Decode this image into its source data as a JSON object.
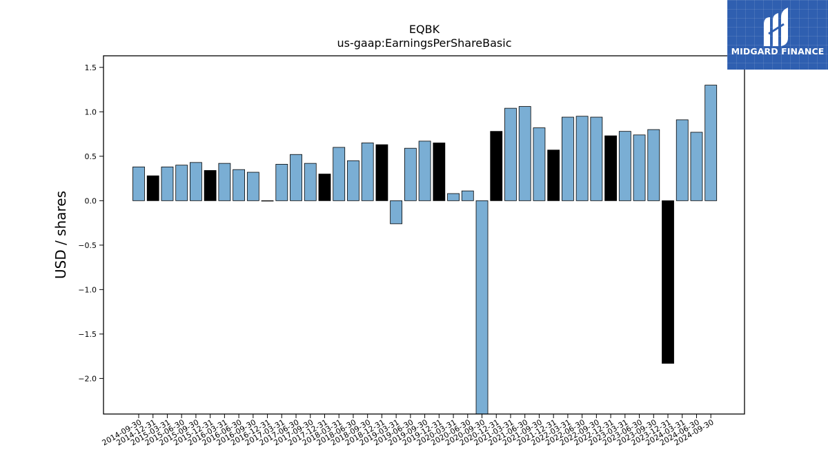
{
  "chart_data": {
    "type": "bar",
    "title": "EQBK",
    "subtitle": "us-gaap:EarningsPerShareBasic",
    "xlabel": "",
    "ylabel": "USD / shares",
    "ylim": [
      -2.4,
      1.63
    ],
    "yticks": [
      -2.0,
      -1.5,
      -1.0,
      -0.5,
      0.0,
      0.5,
      1.0,
      1.5
    ],
    "ytick_labels": [
      "−2.0",
      "−1.5",
      "−1.0",
      "−0.5",
      "0.0",
      "0.5",
      "1.0",
      "1.5"
    ],
    "grid": false,
    "colors": {
      "quarterly": "#7aaed4",
      "annual": "#000000",
      "edge": "#000000"
    },
    "categories": [
      "2014-09-30",
      "2014-12-31",
      "2015-03-31",
      "2015-06-30",
      "2015-09-30",
      "2015-12-31",
      "2016-03-31",
      "2016-06-30",
      "2016-09-30",
      "2016-12-31",
      "2017-03-31",
      "2017-06-30",
      "2017-09-30",
      "2017-12-31",
      "2018-03-31",
      "2018-06-30",
      "2018-09-30",
      "2018-12-31",
      "2019-03-31",
      "2019-06-30",
      "2019-09-30",
      "2019-12-31",
      "2020-03-31",
      "2020-06-30",
      "2020-09-30",
      "2020-12-31",
      "2021-03-31",
      "2021-06-30",
      "2021-09-30",
      "2021-12-31",
      "2022-03-31",
      "2022-06-30",
      "2022-09-30",
      "2022-12-31",
      "2023-03-31",
      "2023-06-30",
      "2023-09-30",
      "2023-12-31",
      "2024-03-31",
      "2024-06-30",
      "2024-09-30"
    ],
    "values": [
      0.38,
      0.28,
      0.38,
      0.4,
      0.43,
      0.34,
      0.42,
      0.35,
      0.32,
      0.0,
      0.41,
      0.52,
      0.42,
      0.3,
      0.6,
      0.45,
      0.65,
      0.63,
      -0.26,
      0.59,
      0.67,
      0.65,
      0.08,
      0.11,
      -2.45,
      0.78,
      1.04,
      1.06,
      0.82,
      0.57,
      0.94,
      0.95,
      0.94,
      0.73,
      0.78,
      0.74,
      0.8,
      -1.83,
      0.91,
      0.77,
      1.3
    ],
    "annual": [
      false,
      true,
      false,
      false,
      false,
      true,
      false,
      false,
      false,
      true,
      false,
      false,
      false,
      true,
      false,
      false,
      false,
      true,
      false,
      false,
      false,
      true,
      false,
      false,
      false,
      true,
      false,
      false,
      false,
      true,
      false,
      false,
      false,
      true,
      false,
      false,
      false,
      true,
      false,
      false,
      false
    ]
  },
  "logo": {
    "text": "MIDGARD FINANCE"
  }
}
